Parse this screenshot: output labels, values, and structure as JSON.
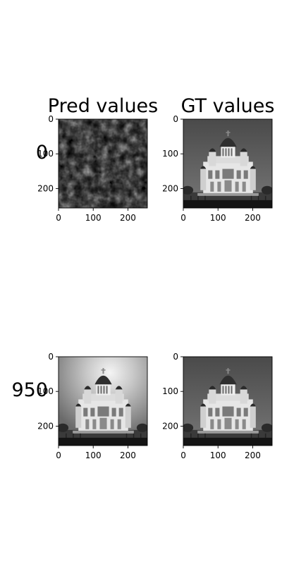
{
  "chart_data": {
    "type": "image-grid",
    "column_titles": [
      "Pred values",
      "GT values"
    ],
    "row_labels": [
      "0",
      "950"
    ],
    "axes": {
      "xlim": [
        0,
        256
      ],
      "ylim": [
        256,
        0
      ],
      "x_ticks": [
        0,
        100,
        200
      ],
      "y_ticks": [
        0,
        100,
        200
      ]
    },
    "panels": [
      {
        "row": 0,
        "col": 0,
        "content": "noise"
      },
      {
        "row": 0,
        "col": 1,
        "content": "cathedral"
      },
      {
        "row": 1,
        "col": 0,
        "content": "cathedral-reconstruction"
      },
      {
        "row": 1,
        "col": 1,
        "content": "cathedral"
      }
    ]
  }
}
